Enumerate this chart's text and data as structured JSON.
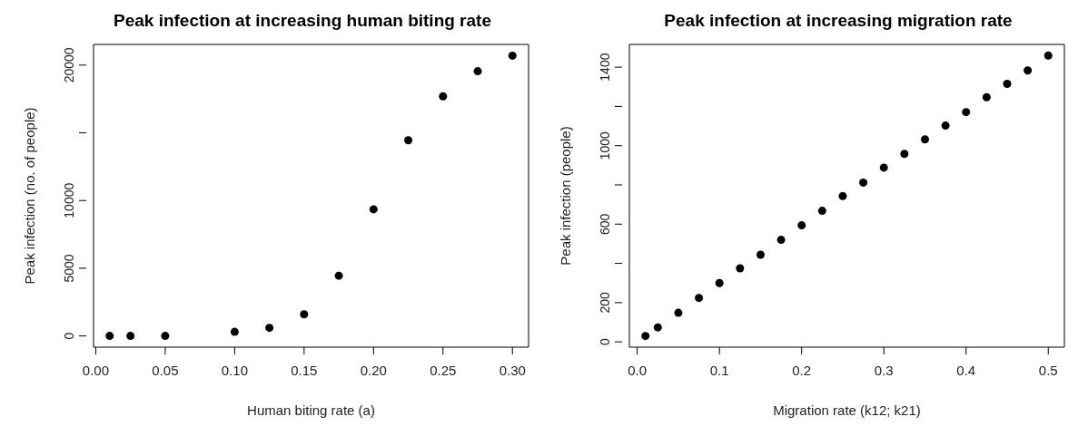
{
  "chart_data": [
    {
      "type": "scatter",
      "title": "Peak infection at increasing human biting rate",
      "xlabel": "Human biting rate (a)",
      "ylabel": "Peak infection (no. of people)",
      "x": [
        0.01,
        0.025,
        0.05,
        0.1,
        0.125,
        0.15,
        0.175,
        0.2,
        0.225,
        0.25,
        0.275,
        0.3
      ],
      "values": [
        0,
        0,
        0,
        300,
        600,
        1600,
        4450,
        9350,
        14450,
        17700,
        19550,
        20700
      ],
      "color": "#000000",
      "marker": "circle",
      "xlim": [
        -0.0016,
        0.3116
      ],
      "ylim": [
        -830,
        21530
      ],
      "xticks": [
        {
          "value": 0,
          "label": "0.00"
        },
        {
          "value": 0.05,
          "label": "0.05"
        },
        {
          "value": 0.1,
          "label": "0.10"
        },
        {
          "value": 0.15,
          "label": "0.15"
        },
        {
          "value": 0.2,
          "label": "0.20"
        },
        {
          "value": 0.25,
          "label": "0.25"
        },
        {
          "value": 0.3,
          "label": "0.30"
        }
      ],
      "yticks": [
        0,
        5000,
        10000,
        {
          "value": 15000,
          "label": null
        },
        20000
      ],
      "grid": false,
      "legend": false
    },
    {
      "type": "scatter",
      "title": "Peak infection at increasing migration rate",
      "xlabel": "Migration rate (k12; k21)",
      "ylabel": "Peak infection (people)",
      "x": [
        0.01,
        0.025,
        0.05,
        0.075,
        0.1,
        0.125,
        0.15,
        0.175,
        0.2,
        0.225,
        0.25,
        0.275,
        0.3,
        0.325,
        0.35,
        0.375,
        0.4,
        0.425,
        0.45,
        0.475,
        0.5
      ],
      "values": [
        30,
        74,
        148,
        224,
        300,
        375,
        444,
        520,
        594,
        668,
        743,
        812,
        888,
        958,
        1032,
        1102,
        1171,
        1247,
        1315,
        1383,
        1459
      ],
      "color": "#000000",
      "marker": "circle",
      "xlim": [
        -0.0096,
        0.5196
      ],
      "ylim": [
        -27,
        1516
      ],
      "xticks": [
        {
          "value": 0,
          "label": "0.0"
        },
        {
          "value": 0.1,
          "label": "0.1"
        },
        {
          "value": 0.2,
          "label": "0.2"
        },
        {
          "value": 0.3,
          "label": "0.3"
        },
        {
          "value": 0.4,
          "label": "0.4"
        },
        {
          "value": 0.5,
          "label": "0.5"
        }
      ],
      "yticks": [
        0,
        200,
        {
          "value": 400,
          "label": null
        },
        600,
        {
          "value": 800,
          "label": null
        },
        1000,
        {
          "value": 1200,
          "label": null
        },
        1400
      ],
      "grid": false,
      "legend": false
    }
  ]
}
